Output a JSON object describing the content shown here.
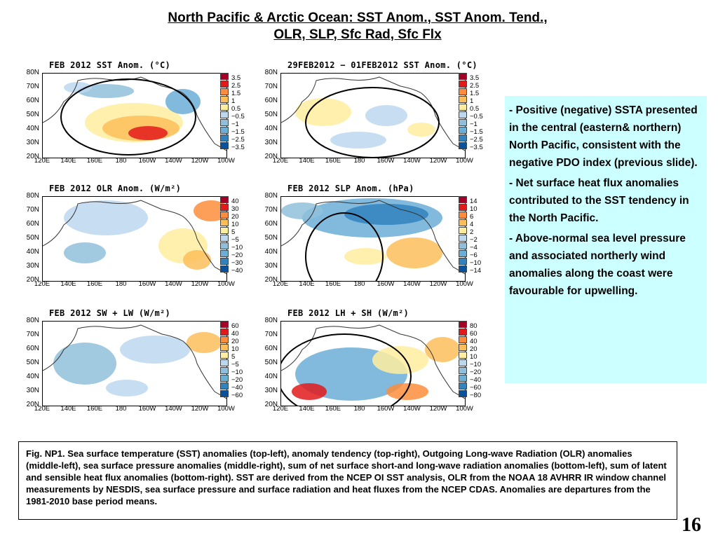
{
  "title": {
    "line1": "North Pacific & Arctic Ocean: SST Anom., SST Anom. Tend.,",
    "line2": "OLR, SLP, Sfc Rad, Sfc Flx"
  },
  "lat_labels": [
    "80N",
    "70N",
    "60N",
    "50N",
    "40N",
    "30N",
    "20N"
  ],
  "lon_labels": [
    "120E",
    "140E",
    "160E",
    "180",
    "160W",
    "140W",
    "120W",
    "100W"
  ],
  "panels": [
    {
      "title": "FEB 2012 SST Anom. (°C)",
      "cbar": [
        "3.5",
        "2.5",
        "1.5",
        "1",
        "0.5",
        "−0.5",
        "−1",
        "−1.5",
        "−2.5",
        "−3.5"
      ]
    },
    {
      "title": "29FEB2012 − 01FEB2012 SST Anom. (°C)",
      "cbar": [
        "3.5",
        "2.5",
        "1.5",
        "1",
        "0.5",
        "−0.5",
        "−1",
        "−1.5",
        "−2.5",
        "−3.5"
      ]
    },
    {
      "title": "FEB 2012 OLR Anom. (W/m²)",
      "cbar": [
        "40",
        "30",
        "20",
        "10",
        "5",
        "−5",
        "−10",
        "−20",
        "−30",
        "−40"
      ]
    },
    {
      "title": "FEB 2012 SLP Anom. (hPa)",
      "cbar": [
        "14",
        "10",
        "6",
        "4",
        "2",
        "−2",
        "−4",
        "−6",
        "−10",
        "−14"
      ]
    },
    {
      "title": "FEB 2012 SW + LW (W/m²)",
      "cbar": [
        "60",
        "40",
        "20",
        "10",
        "5",
        "−5",
        "−10",
        "−20",
        "−40",
        "−60"
      ]
    },
    {
      "title": "FEB 2012 LH + SH (W/m²)",
      "cbar": [
        "80",
        "60",
        "40",
        "20",
        "10",
        "−10",
        "−20",
        "−40",
        "−60",
        "−80"
      ]
    }
  ],
  "colors": {
    "scale": [
      "#a50026",
      "#e31a1c",
      "#fd8d3c",
      "#fdbe5a",
      "#ffeda0",
      "#bdd7ee",
      "#91bfdb",
      "#6baed6",
      "#3182bd",
      "#08519c"
    ],
    "sidebox_bg": "#ccffff"
  },
  "sidebox": {
    "bullets": [
      "Positive (negative) SSTA presented in the central (eastern& northern) North Pacific, consistent with the negative PDO index (previous slide).",
      "Net surface heat flux anomalies contributed to the SST tendency in the North Pacific.",
      "Above-normal sea level pressure and associated northerly wind anomalies along the  coast were favourable for upwelling."
    ]
  },
  "caption": "Fig. NP1. Sea surface temperature (SST) anomalies (top-left), anomaly tendency (top-right), Outgoing Long-wave Radiation (OLR) anomalies (middle-left), sea surface pressure anomalies (middle-right), sum of net surface short-and long-wave radiation anomalies (bottom-left), sum of latent and sensible heat flux anomalies (bottom-right). SST are derived from the NCEP OI SST analysis, OLR from the NOAA 18 AVHRR IR window channel measurements by NESDIS, sea surface pressure and surface radiation and heat fluxes from the NCEP CDAS. Anomalies are departures from the 1981-2010  base period means.",
  "page_number": "16"
}
